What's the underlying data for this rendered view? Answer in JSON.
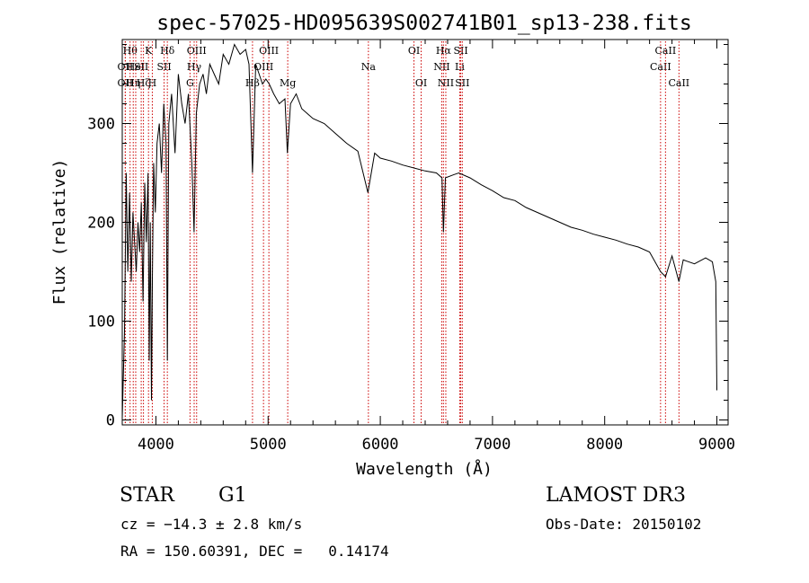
{
  "chart_data": {
    "type": "line",
    "title": "spec-57025-HD095639S002741B01_sp13-238.fits",
    "xlabel": "Wavelength (Å)",
    "ylabel": "Flux (relative)",
    "xlim": [
      3700,
      9100
    ],
    "ylim": [
      -5,
      385
    ],
    "x_ticks": [
      4000,
      5000,
      6000,
      7000,
      8000,
      9000
    ],
    "y_ticks": [
      0,
      100,
      200,
      300
    ],
    "grid": false,
    "legend": "none",
    "line_color": "#000000",
    "marker_color": "#cc0000",
    "series": [
      {
        "x": [
          3700,
          3720,
          3735,
          3750,
          3765,
          3780,
          3795,
          3810,
          3825,
          3840,
          3855,
          3870,
          3885,
          3900,
          3915,
          3930,
          3940,
          3950,
          3960,
          3968,
          3980,
          3995,
          4010,
          4030,
          4050,
          4070,
          4090,
          4102,
          4115,
          4140,
          4170,
          4200,
          4230,
          4260,
          4290,
          4320,
          4340,
          4360,
          4390,
          4420,
          4450,
          4480,
          4520,
          4560,
          4600,
          4650,
          4700,
          4750,
          4800,
          4830,
          4861,
          4890,
          4920,
          4950,
          4980,
          5010,
          5050,
          5100,
          5150,
          5172,
          5200,
          5250,
          5300,
          5400,
          5500,
          5600,
          5700,
          5800,
          5890,
          5950,
          6000,
          6100,
          6200,
          6300,
          6400,
          6500,
          6550,
          6563,
          6580,
          6650,
          6700,
          6800,
          6900,
          7000,
          7100,
          7200,
          7300,
          7400,
          7500,
          7600,
          7700,
          7800,
          7900,
          8000,
          8100,
          8200,
          8300,
          8400,
          8498,
          8542,
          8600,
          8662,
          8700,
          8800,
          8900,
          8960,
          8990,
          9000
        ],
        "y": [
          2,
          90,
          250,
          150,
          230,
          140,
          210,
          180,
          150,
          200,
          170,
          220,
          120,
          240,
          180,
          250,
          60,
          200,
          20,
          140,
          260,
          210,
          280,
          300,
          250,
          320,
          280,
          60,
          300,
          330,
          270,
          350,
          320,
          300,
          330,
          260,
          190,
          310,
          340,
          350,
          330,
          360,
          350,
          340,
          370,
          360,
          380,
          370,
          375,
          360,
          250,
          360,
          350,
          340,
          345,
          340,
          330,
          320,
          325,
          270,
          320,
          330,
          315,
          305,
          300,
          290,
          280,
          272,
          230,
          270,
          265,
          262,
          258,
          255,
          252,
          250,
          245,
          190,
          245,
          248,
          250,
          245,
          238,
          232,
          225,
          222,
          215,
          210,
          205,
          200,
          195,
          192,
          188,
          185,
          182,
          178,
          175,
          170,
          150,
          145,
          166,
          140,
          162,
          158,
          164,
          160,
          140,
          30
        ]
      }
    ],
    "line_markers": [
      {
        "x": 3727,
        "row": 1,
        "label": "OII"
      },
      {
        "x": 3727,
        "row": 2,
        "label": "OII"
      },
      {
        "x": 3770,
        "row": 0,
        "label": "Hθ"
      },
      {
        "x": 3798,
        "row": 2,
        "label": "Hη"
      },
      {
        "x": 3820,
        "row": 1,
        "label": "HeI"
      },
      {
        "x": 3869,
        "row": 1,
        "label": "SII"
      },
      {
        "x": 3889,
        "row": 2,
        "label": "Hζ"
      },
      {
        "x": 3934,
        "row": 0,
        "label": "K"
      },
      {
        "x": 3968,
        "row": 2,
        "label": "H"
      },
      {
        "x": 4073,
        "row": 1,
        "label": "SII"
      },
      {
        "x": 4102,
        "row": 0,
        "label": "Hδ"
      },
      {
        "x": 4304,
        "row": 2,
        "label": "G"
      },
      {
        "x": 4341,
        "row": 1,
        "label": "Hγ"
      },
      {
        "x": 4363,
        "row": 0,
        "label": "OIII"
      },
      {
        "x": 4861,
        "row": 2,
        "label": "Hβ"
      },
      {
        "x": 4959,
        "row": 1,
        "label": "OIII"
      },
      {
        "x": 5007,
        "row": 0,
        "label": "OIII"
      },
      {
        "x": 5175,
        "row": 2,
        "label": "Mg"
      },
      {
        "x": 5894,
        "row": 1,
        "label": "Na"
      },
      {
        "x": 6300,
        "row": 0,
        "label": "OI"
      },
      {
        "x": 6364,
        "row": 2,
        "label": "OI"
      },
      {
        "x": 6548,
        "row": 1,
        "label": "NII"
      },
      {
        "x": 6563,
        "row": 0,
        "label": "Hα"
      },
      {
        "x": 6584,
        "row": 2,
        "label": "NII"
      },
      {
        "x": 6708,
        "row": 1,
        "label": "Li"
      },
      {
        "x": 6717,
        "row": 0,
        "label": "SII"
      },
      {
        "x": 6731,
        "row": 2,
        "label": "SII"
      },
      {
        "x": 8498,
        "row": 1,
        "label": "CaII"
      },
      {
        "x": 8542,
        "row": 0,
        "label": "CaII"
      },
      {
        "x": 8662,
        "row": 2,
        "label": "CaII"
      }
    ]
  },
  "info": {
    "object_type": "STAR",
    "subclass": "G1",
    "survey": "LAMOST DR3",
    "cz": "cz = −14.3 ± 2.8 km/s",
    "obs_date": "Obs-Date: 20150102",
    "coords": "RA = 150.60391, DEC =   0.14174"
  }
}
